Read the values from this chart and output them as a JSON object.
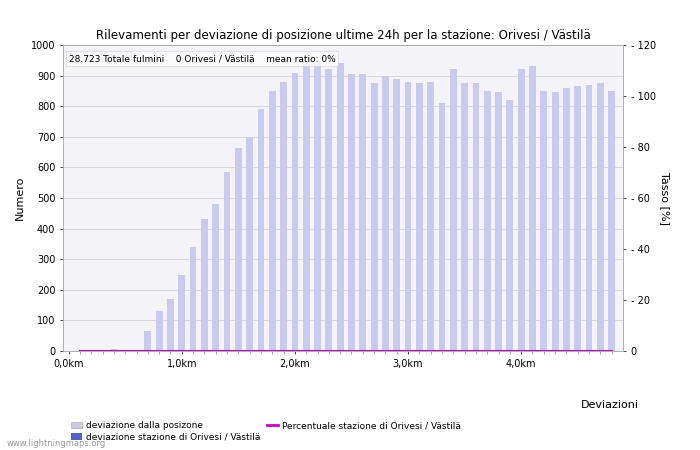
{
  "title": "Rilevamenti per deviazione di posizione ultime 24h per la stazione: Orivesi / Västilä",
  "annotation": "28.723 Totale fulmini    0 Orivesi / Västilä    mean ratio: 0%",
  "ylabel_left": "Numero",
  "ylabel_right": "Tasso [%]",
  "ylim_left": [
    0,
    1000
  ],
  "ylim_right": [
    0,
    120
  ],
  "right_yticks": [
    0,
    20,
    40,
    60,
    80,
    100,
    120
  ],
  "left_yticks": [
    0,
    100,
    200,
    300,
    400,
    500,
    600,
    700,
    800,
    900,
    1000
  ],
  "xlabel_ticks": [
    "0,0km",
    "1,0km",
    "2,0km",
    "3,0km",
    "4,0km"
  ],
  "xlabel_tick_positions": [
    0,
    10,
    20,
    30,
    40
  ],
  "watermark": "www.lightningmaps.org",
  "bar_color_light": "#c8caf0",
  "bar_color_dark": "#5060cc",
  "line_color": "#cc00cc",
  "bar_positions": [
    1,
    2,
    3,
    4,
    5,
    6,
    7,
    8,
    9,
    10,
    11,
    12,
    13,
    14,
    15,
    16,
    17,
    18,
    19,
    20,
    21,
    22,
    23,
    24,
    25,
    26,
    27,
    28,
    29,
    30,
    31,
    32,
    33,
    34,
    35,
    36,
    37,
    38,
    39,
    40,
    41,
    42,
    43,
    44,
    45,
    46,
    47,
    48
  ],
  "bar_values": [
    0,
    0,
    0,
    5,
    0,
    0,
    65,
    130,
    170,
    250,
    340,
    430,
    480,
    585,
    665,
    700,
    790,
    850,
    880,
    910,
    950,
    940,
    920,
    940,
    905,
    905,
    875,
    900,
    890,
    880,
    875,
    880,
    810,
    920,
    875,
    875,
    850,
    845,
    820,
    920,
    930,
    850,
    845,
    860,
    865,
    870,
    875,
    850
  ],
  "station_bar_values": [
    0,
    0,
    0,
    0,
    0,
    0,
    0,
    0,
    0,
    0,
    0,
    0,
    0,
    0,
    0,
    0,
    0,
    0,
    0,
    0,
    0,
    0,
    0,
    0,
    0,
    0,
    0,
    0,
    0,
    0,
    0,
    0,
    0,
    0,
    0,
    0,
    0,
    0,
    0,
    0,
    0,
    0,
    0,
    0,
    0,
    0,
    0,
    0
  ],
  "ratio_line_values": [
    0,
    0,
    0,
    0,
    0,
    0,
    0,
    0,
    0,
    0,
    0,
    0,
    0,
    0,
    0,
    0,
    0,
    0,
    0,
    0,
    0,
    0,
    0,
    0,
    0,
    0,
    0,
    0,
    0,
    0,
    0,
    0,
    0,
    0,
    0,
    0,
    0,
    0,
    0,
    0,
    0,
    0,
    0,
    0,
    0,
    0,
    0,
    0
  ],
  "legend_label_light": "deviazione dalla posizone",
  "legend_label_dark": "deviazione stazione di Orivesi / Västilä",
  "legend_label_line": "Percentuale stazione di Orivesi / Västilä",
  "legend_title": "Deviazioni",
  "background_color": "#ffffff",
  "plot_bg_color": "#f4f4f8"
}
